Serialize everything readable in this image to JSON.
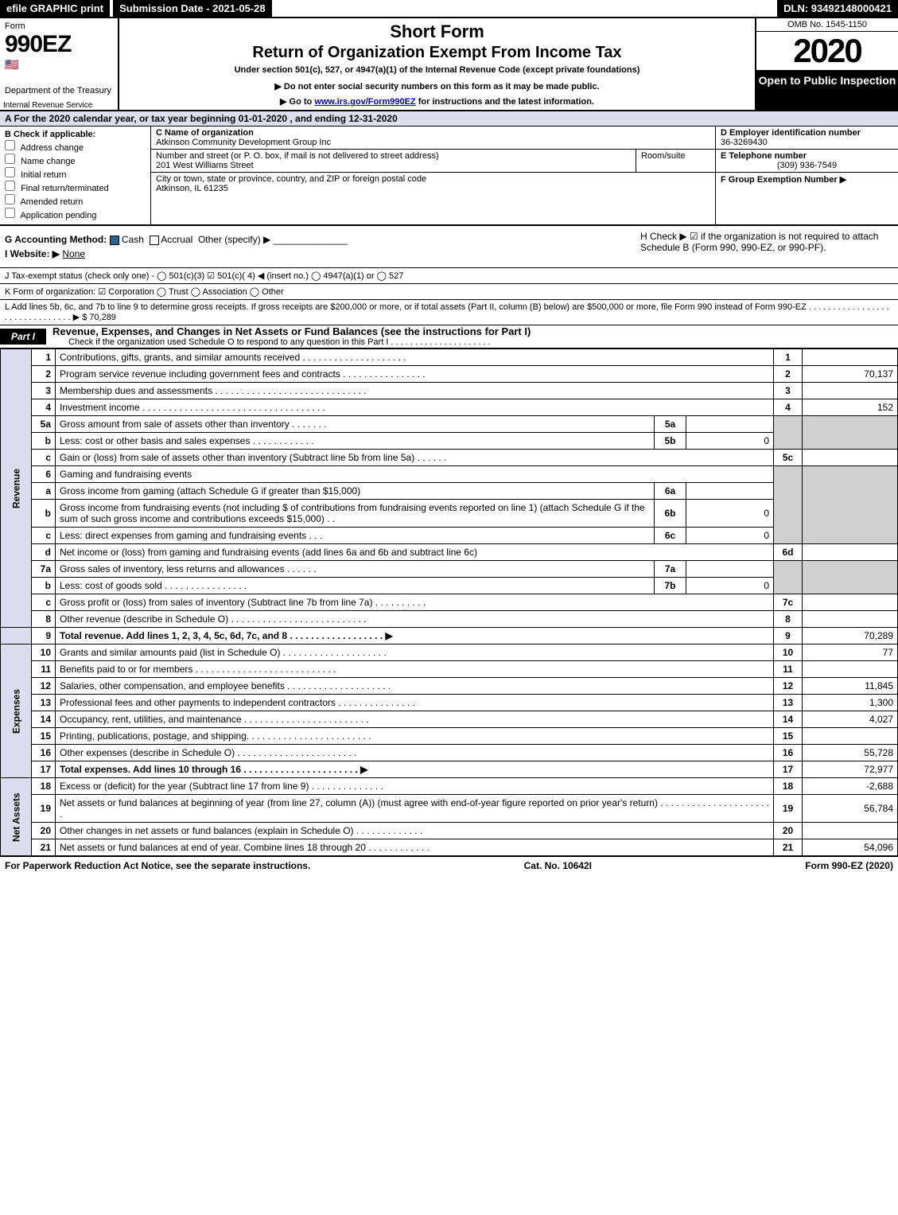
{
  "top": {
    "efile": "efile GRAPHIC print",
    "sub_date": "Submission Date - 2021-05-28",
    "dln": "DLN: 93492148000421"
  },
  "header": {
    "form_word": "Form",
    "form_num": "990EZ",
    "dept": "Department of the Treasury",
    "irs": "Internal Revenue Service",
    "title1": "Short Form",
    "title2": "Return of Organization Exempt From Income Tax",
    "sub1": "Under section 501(c), 527, or 4947(a)(1) of the Internal Revenue Code (except private foundations)",
    "sub2": "▶ Do not enter social security numbers on this form as it may be made public.",
    "sub3_pre": "▶ Go to ",
    "sub3_link": "www.irs.gov/Form990EZ",
    "sub3_post": " for instructions and the latest information.",
    "omb": "OMB No. 1545-1150",
    "year": "2020",
    "inspect": "Open to Public Inspection"
  },
  "period": "A For the 2020 calendar year, or tax year beginning 01-01-2020 , and ending 12-31-2020",
  "boxB": {
    "hdr": "B Check if applicable:",
    "opts": [
      "Address change",
      "Name change",
      "Initial return",
      "Final return/terminated",
      "Amended return",
      "Application pending"
    ]
  },
  "boxC": {
    "lbl": "C Name of organization",
    "name": "Atkinson Community Development Group Inc",
    "addr_lbl": "Number and street (or P. O. box, if mail is not delivered to street address)",
    "addr": "201 West Williams Street",
    "room_lbl": "Room/suite",
    "city_lbl": "City or town, state or province, country, and ZIP or foreign postal code",
    "city": "Atkinson, IL  61235"
  },
  "boxD": {
    "lbl": "D Employer identification number",
    "val": "36-3269430"
  },
  "boxE": {
    "lbl": "E Telephone number",
    "val": "(309) 936-7549"
  },
  "boxF": {
    "lbl": "F Group Exemption Number  ▶",
    "val": ""
  },
  "gLine": {
    "lbl": "G Accounting Method:",
    "cash": "Cash",
    "accrual": "Accrual",
    "other": "Other (specify) ▶"
  },
  "hLine": "H  Check ▶  ☑  if the organization is not required to attach Schedule B (Form 990, 990-EZ, or 990-PF).",
  "iLine": {
    "lbl": "I Website: ▶",
    "val": "None"
  },
  "jLine": "J Tax-exempt status (check only one) -  ◯ 501(c)(3)  ☑ 501(c)( 4) ◀ (insert no.)  ◯ 4947(a)(1) or  ◯ 527",
  "kLine": "K Form of organization:   ☑ Corporation   ◯ Trust   ◯ Association   ◯ Other",
  "lLine": {
    "text": "L Add lines 5b, 6c, and 7b to line 9 to determine gross receipts. If gross receipts are $200,000 or more, or if total assets (Part II, column (B) below) are $500,000 or more, file Form 990 instead of Form 990-EZ . . . . . . . . . . . . . . . . . . . . . . . . . . . . . . .  ▶ $",
    "val": "70,289"
  },
  "part1": {
    "lbl": "Part I",
    "title": "Revenue, Expenses, and Changes in Net Assets or Fund Balances (see the instructions for Part I)",
    "sub": "Check if the organization used Schedule O to respond to any question in this Part I . . . . . . . . . . . . . . . . . . . . .",
    "chk": "☑"
  },
  "vtabs": {
    "rev": "Revenue",
    "exp": "Expenses",
    "net": "Net Assets"
  },
  "rows": {
    "r1": {
      "n": "1",
      "d": "Contributions, gifts, grants, and similar amounts received  . . . . . . . . . . . . . . . . . . . .",
      "rn": "1",
      "rv": ""
    },
    "r2": {
      "n": "2",
      "d": "Program service revenue including government fees and contracts  . . . . . . . . . . . . . . . .",
      "rn": "2",
      "rv": "70,137"
    },
    "r3": {
      "n": "3",
      "d": "Membership dues and assessments  . . . . . . . . . . . . . . . . . . . . . . . . . . . . .",
      "rn": "3",
      "rv": ""
    },
    "r4": {
      "n": "4",
      "d": "Investment income  . . . . . . . . . . . . . . . . . . . . . . . . . . . . . . . . . . .",
      "rn": "4",
      "rv": "152"
    },
    "r5a": {
      "n": "5a",
      "d": "Gross amount from sale of assets other than inventory  . . . . . . .",
      "mn": "5a",
      "mv": ""
    },
    "r5b": {
      "n": "b",
      "d": "Less: cost or other basis and sales expenses  . . . . . . . . . . . .",
      "mn": "5b",
      "mv": "0"
    },
    "r5c": {
      "n": "c",
      "d": "Gain or (loss) from sale of assets other than inventory (Subtract line 5b from line 5a)  . . . . . .",
      "rn": "5c",
      "rv": ""
    },
    "r6": {
      "n": "6",
      "d": "Gaming and fundraising events"
    },
    "r6a": {
      "n": "a",
      "d": "Gross income from gaming (attach Schedule G if greater than $15,000)",
      "mn": "6a",
      "mv": ""
    },
    "r6b": {
      "n": "b",
      "d": "Gross income from fundraising events (not including $                       of contributions from fundraising events reported on line 1) (attach Schedule G if the sum of such gross income and contributions exceeds $15,000)   . .",
      "mn": "6b",
      "mv": "0"
    },
    "r6c": {
      "n": "c",
      "d": "Less: direct expenses from gaming and fundraising events         . . .",
      "mn": "6c",
      "mv": "0"
    },
    "r6d": {
      "n": "d",
      "d": "Net income or (loss) from gaming and fundraising events (add lines 6a and 6b and subtract line 6c)",
      "rn": "6d",
      "rv": ""
    },
    "r7a": {
      "n": "7a",
      "d": "Gross sales of inventory, less returns and allowances  . . . . . .",
      "mn": "7a",
      "mv": ""
    },
    "r7b": {
      "n": "b",
      "d": "Less: cost of goods sold         . . . . . . . . . . . . . . . .",
      "mn": "7b",
      "mv": "0"
    },
    "r7c": {
      "n": "c",
      "d": "Gross profit or (loss) from sales of inventory (Subtract line 7b from line 7a)  . . . . . . . . . .",
      "rn": "7c",
      "rv": ""
    },
    "r8": {
      "n": "8",
      "d": "Other revenue (describe in Schedule O)  . . . . . . . . . . . . . . . . . . . . . . . . . .",
      "rn": "8",
      "rv": ""
    },
    "r9": {
      "n": "9",
      "d": "Total revenue. Add lines 1, 2, 3, 4, 5c, 6d, 7c, and 8  . . . . . . . . . . . . . . . . . .   ▶",
      "rn": "9",
      "rv": "70,289"
    },
    "r10": {
      "n": "10",
      "d": "Grants and similar amounts paid (list in Schedule O)  . . . . . . . . . . . . . . . . . . . .",
      "rn": "10",
      "rv": "77"
    },
    "r11": {
      "n": "11",
      "d": "Benefits paid to or for members       . . . . . . . . . . . . . . . . . . . . . . . . . . .",
      "rn": "11",
      "rv": ""
    },
    "r12": {
      "n": "12",
      "d": "Salaries, other compensation, and employee benefits  . . . . . . . . . . . . . . . . . . . .",
      "rn": "12",
      "rv": "11,845"
    },
    "r13": {
      "n": "13",
      "d": "Professional fees and other payments to independent contractors  . . . . . . . . . . . . . . .",
      "rn": "13",
      "rv": "1,300"
    },
    "r14": {
      "n": "14",
      "d": "Occupancy, rent, utilities, and maintenance  . . . . . . . . . . . . . . . . . . . . . . . .",
      "rn": "14",
      "rv": "4,027"
    },
    "r15": {
      "n": "15",
      "d": "Printing, publications, postage, and shipping.  . . . . . . . . . . . . . . . . . . . . . . .",
      "rn": "15",
      "rv": ""
    },
    "r16": {
      "n": "16",
      "d": "Other expenses (describe in Schedule O)       . . . . . . . . . . . . . . . . . . . . . . .",
      "rn": "16",
      "rv": "55,728"
    },
    "r17": {
      "n": "17",
      "d": "Total expenses. Add lines 10 through 16      . . . . . . . . . . . . . . . . . . . . . .   ▶",
      "rn": "17",
      "rv": "72,977"
    },
    "r18": {
      "n": "18",
      "d": "Excess or (deficit) for the year (Subtract line 17 from line 9)         . . . . . . . . . . . . . .",
      "rn": "18",
      "rv": "-2,688"
    },
    "r19": {
      "n": "19",
      "d": "Net assets or fund balances at beginning of year (from line 27, column (A)) (must agree with end-of-year figure reported on prior year's return)  . . . . . . . . . . . . . . . . . . . . . .",
      "rn": "19",
      "rv": "56,784"
    },
    "r20": {
      "n": "20",
      "d": "Other changes in net assets or fund balances (explain in Schedule O)  . . . . . . . . . . . . .",
      "rn": "20",
      "rv": ""
    },
    "r21": {
      "n": "21",
      "d": "Net assets or fund balances at end of year. Combine lines 18 through 20  . . . . . . . . . . . .",
      "rn": "21",
      "rv": "54,096"
    }
  },
  "footer": {
    "left": "For Paperwork Reduction Act Notice, see the separate instructions.",
    "mid": "Cat. No. 10642I",
    "right": "Form 990-EZ (2020)"
  }
}
